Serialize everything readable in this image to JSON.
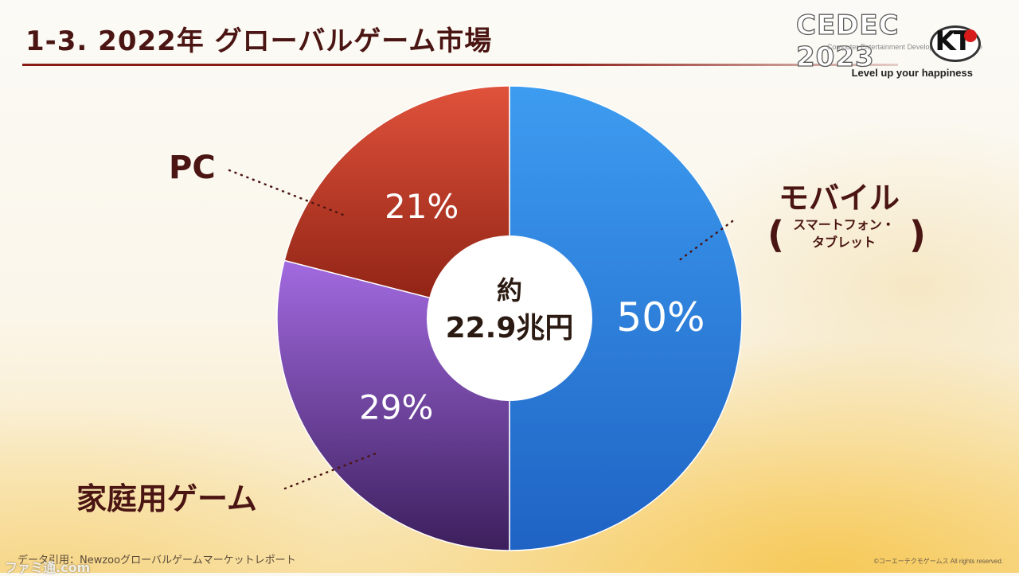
{
  "slide": {
    "title": "1-3.  2022年  グローバルゲーム市場",
    "source": "データ引用：Newzooグローバルゲームマーケットレポート",
    "copyright": "©コーエーテクモゲームス All rights reserved."
  },
  "branding": {
    "event_logo": "CEDEC 2023",
    "event_subtitle": "Computer Entertainment Developers Conference",
    "company_logo": "KT",
    "tagline": "Level up your happiness",
    "watermark": "ファミ通.com"
  },
  "chart_data": {
    "type": "pie",
    "style": "donut",
    "center_label": [
      "約",
      "22.9兆円"
    ],
    "slices": [
      {
        "label": "モバイル",
        "sublabel": [
          "スマートフォン・",
          "タブレット"
        ],
        "value": 50,
        "display": "50%",
        "color": "#2f86e0"
      },
      {
        "label": "家庭用ゲーム",
        "value": 29,
        "display": "29%",
        "color": "#7b3fb4"
      },
      {
        "label": "PC",
        "value": 21,
        "display": "21%",
        "color": "#c0392b"
      }
    ],
    "start_angle_deg": 0,
    "direction": "clockwise"
  },
  "colors": {
    "title": "#4a1512",
    "rule": "#8a1c14"
  }
}
